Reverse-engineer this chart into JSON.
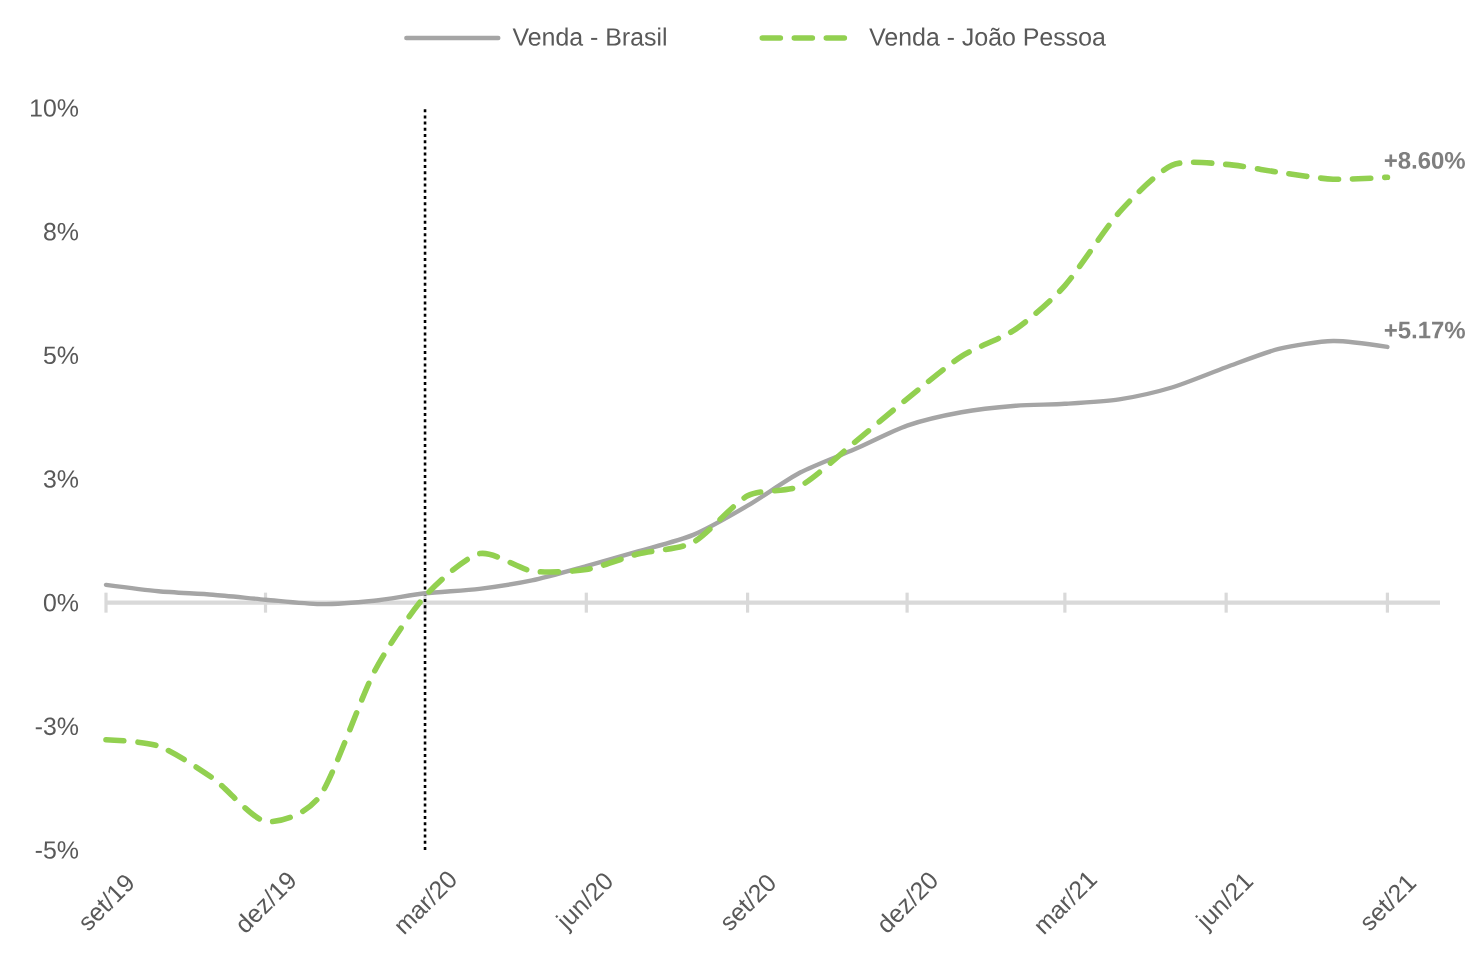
{
  "chart_data": {
    "type": "line",
    "x": [
      "2019-09",
      "2019-10",
      "2019-11",
      "2019-12",
      "2020-01",
      "2020-02",
      "2020-03",
      "2020-04",
      "2020-05",
      "2020-06",
      "2020-07",
      "2020-08",
      "2020-09",
      "2020-10",
      "2020-11",
      "2020-12",
      "2021-01",
      "2021-02",
      "2021-03",
      "2021-04",
      "2021-05",
      "2021-06",
      "2021-07",
      "2021-08",
      "2021-09"
    ],
    "series": [
      {
        "name": "Venda - Brasil",
        "color": "#a5a5a5",
        "line_style": "solid",
        "values": [
          0.36,
          0.23,
          0.16,
          0.06,
          -0.03,
          0.04,
          0.19,
          0.28,
          0.45,
          0.74,
          1.04,
          1.37,
          1.96,
          2.63,
          3.1,
          3.58,
          3.85,
          3.98,
          4.02,
          4.11,
          4.35,
          4.76,
          5.13,
          5.29,
          5.17
        ]
      },
      {
        "name": "Venda - João Pessoa",
        "color": "#92d050",
        "line_style": "dashed",
        "values": [
          -2.77,
          -2.9,
          -3.55,
          -4.42,
          -3.91,
          -1.4,
          0.13,
          0.99,
          0.64,
          0.67,
          0.99,
          1.22,
          2.16,
          2.36,
          3.24,
          4.12,
          4.98,
          5.53,
          6.41,
          7.89,
          8.84,
          8.86,
          8.7,
          8.56,
          8.6
        ]
      }
    ],
    "xlim": [
      "2019-09",
      "2021-10"
    ],
    "xticks": [
      {
        "value": "2019-09",
        "label": "set/19"
      },
      {
        "value": "2019-12",
        "label": "dez/19"
      },
      {
        "value": "2020-03",
        "label": "mar/20"
      },
      {
        "value": "2020-06",
        "label": "jun/20"
      },
      {
        "value": "2020-09",
        "label": "set/20"
      },
      {
        "value": "2020-12",
        "label": "dez/20"
      },
      {
        "value": "2021-03",
        "label": "mar/21"
      },
      {
        "value": "2021-06",
        "label": "jun/21"
      },
      {
        "value": "2021-09",
        "label": "set/21"
      }
    ],
    "ylim": [
      -5,
      10
    ],
    "yticks": [
      {
        "value": -5,
        "label": "-5%"
      },
      {
        "value": -2.5,
        "label": "-3%"
      },
      {
        "value": 0,
        "label": "0%"
      },
      {
        "value": 2.5,
        "label": "3%"
      },
      {
        "value": 5,
        "label": "5%"
      },
      {
        "value": 7.5,
        "label": "8%"
      },
      {
        "value": 10,
        "label": "10%"
      }
    ],
    "ref_lines": [
      {
        "axis": "x",
        "value": "2020-03",
        "color": "#000000",
        "line_style": "dotted"
      }
    ],
    "annotations": [
      {
        "text": "+8.60%",
        "x": "2021-09",
        "y": 8.6
      },
      {
        "text": "+5.17%",
        "x": "2021-09",
        "y": 5.17
      }
    ],
    "legend": "top"
  }
}
